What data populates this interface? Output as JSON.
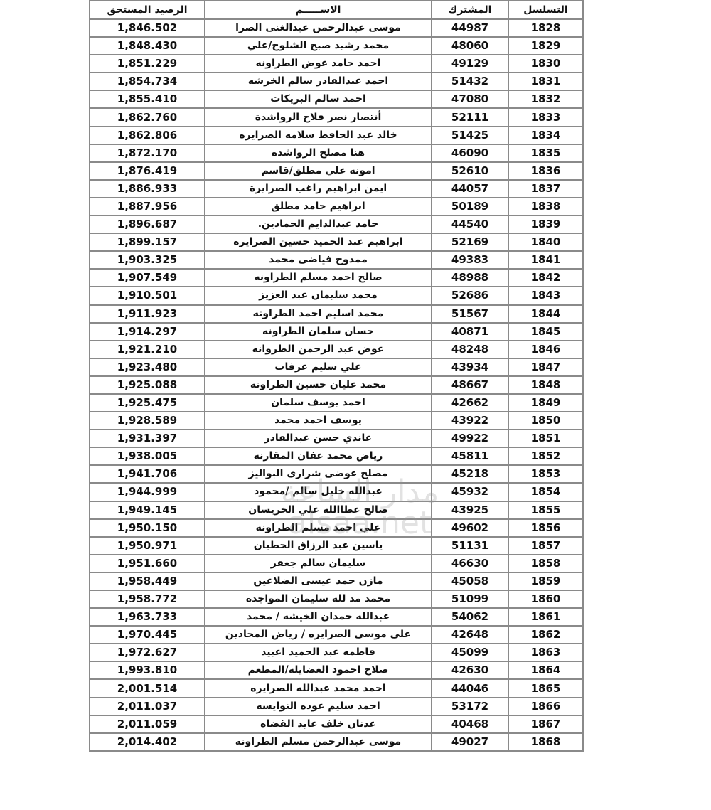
{
  "headers": {
    "balance": "الرصيد المستحق",
    "name": "الاســـــم",
    "subscriber": "المشترك",
    "serial": "التسلسل"
  },
  "rows": [
    {
      "serial": "1828",
      "subscriber": "44987",
      "name": "موسى عبدالرحمن عبدالغنى  الصرا",
      "balance": "1,846.502"
    },
    {
      "serial": "1829",
      "subscriber": "48060",
      "name": "محمد رشيد صبح الشلوح/علي",
      "balance": "1,848.430"
    },
    {
      "serial": "1830",
      "subscriber": "49129",
      "name": "احمد حامد عوض الطراونه",
      "balance": "1,851.229"
    },
    {
      "serial": "1831",
      "subscriber": "51432",
      "name": "احمد عبدالقادر سالم الخرشه",
      "balance": "1,854.734"
    },
    {
      "serial": "1832",
      "subscriber": "47080",
      "name": "احمد سالم البريكات",
      "balance": "1,855.410"
    },
    {
      "serial": "1833",
      "subscriber": "52111",
      "name": "أنتصار نصر فلاح الرواشدة",
      "balance": "1,862.760"
    },
    {
      "serial": "1834",
      "subscriber": "51425",
      "name": "خالد عبد الحافظ  سلامه الصرايره",
      "balance": "1,862.806"
    },
    {
      "serial": "1835",
      "subscriber": "46090",
      "name": "هنا مصلح الرواشدة",
      "balance": "1,872.170"
    },
    {
      "serial": "1836",
      "subscriber": "52610",
      "name": "امونه علي مطلق/قاسم",
      "balance": "1,876.419"
    },
    {
      "serial": "1837",
      "subscriber": "44057",
      "name": "ايمن ابراهيم راغب الصرايرة",
      "balance": "1,886.933"
    },
    {
      "serial": "1838",
      "subscriber": "50189",
      "name": "ابراهيم حامد مطلق",
      "balance": "1,887.956"
    },
    {
      "serial": "1839",
      "subscriber": "44540",
      "name": "حامد عبدالدايم الحمادين.",
      "balance": "1,896.687"
    },
    {
      "serial": "1840",
      "subscriber": "52169",
      "name": "ابراهيم عبد الحميد حسين الصرايره",
      "balance": "1,899.157"
    },
    {
      "serial": "1841",
      "subscriber": "49383",
      "name": "ممدوح فياضى محمد",
      "balance": "1,903.325"
    },
    {
      "serial": "1842",
      "subscriber": "48988",
      "name": "صالح احمد  مسلم الطراونه",
      "balance": "1,907.549"
    },
    {
      "serial": "1843",
      "subscriber": "52686",
      "name": "محمد سليمان عبد العزيز",
      "balance": "1,910.501"
    },
    {
      "serial": "1844",
      "subscriber": "51567",
      "name": "محمد اسليم احمد الطراونه",
      "balance": "1,911.923"
    },
    {
      "serial": "1845",
      "subscriber": "40871",
      "name": "حسان سلمان الطراونه",
      "balance": "1,914.297"
    },
    {
      "serial": "1846",
      "subscriber": "48248",
      "name": "عوض عبد الرحمن الطروانه",
      "balance": "1,921.210"
    },
    {
      "serial": "1847",
      "subscriber": "43934",
      "name": "علي سليم عرفات",
      "balance": "1,923.480"
    },
    {
      "serial": "1848",
      "subscriber": "48667",
      "name": "محمد عليان حسين الطراونه",
      "balance": "1,925.088"
    },
    {
      "serial": "1849",
      "subscriber": "42662",
      "name": "احمد يوسف سلمان",
      "balance": "1,925.475"
    },
    {
      "serial": "1850",
      "subscriber": "43922",
      "name": "يوسف احمد محمد",
      "balance": "1,928.589"
    },
    {
      "serial": "1851",
      "subscriber": "49922",
      "name": "غاندي حسن عبدالقادر",
      "balance": "1,931.397"
    },
    {
      "serial": "1852",
      "subscriber": "45811",
      "name": "رياض محمد عفان المقارنه",
      "balance": "1,938.005"
    },
    {
      "serial": "1853",
      "subscriber": "45218",
      "name": "مصلح عوضى شرارى البواليز",
      "balance": "1,941.706"
    },
    {
      "serial": "1854",
      "subscriber": "45932",
      "name": "عبدالله خليل سالم /محمود",
      "balance": "1,944.999"
    },
    {
      "serial": "1855",
      "subscriber": "43925",
      "name": "صالح عطاالله علي الخريسان",
      "balance": "1,949.145"
    },
    {
      "serial": "1856",
      "subscriber": "49602",
      "name": "علي احمد  مسلم الطراونه",
      "balance": "1,950.150"
    },
    {
      "serial": "1857",
      "subscriber": "51131",
      "name": "ياسين عبد الرزاق الحطيان",
      "balance": "1,950.971"
    },
    {
      "serial": "1858",
      "subscriber": "46630",
      "name": "سليمان سالم جعفر",
      "balance": "1,951.660"
    },
    {
      "serial": "1859",
      "subscriber": "45058",
      "name": "مازن حمد عيسى الضلاعين",
      "balance": "1,958.449"
    },
    {
      "serial": "1860",
      "subscriber": "51099",
      "name": "محمد مد لله  سليمان  المواجده",
      "balance": "1,958.772"
    },
    {
      "serial": "1861",
      "subscriber": "54062",
      "name": "عبدالله حمدان الخيشه / محمد",
      "balance": "1,963.733"
    },
    {
      "serial": "1862",
      "subscriber": "42648",
      "name": "على موسى الصرايره / رياض المحادين",
      "balance": "1,970.445"
    },
    {
      "serial": "1863",
      "subscriber": "45099",
      "name": "فاطمه عبد الحميد اعبيد",
      "balance": "1,972.627"
    },
    {
      "serial": "1864",
      "subscriber": "42630",
      "name": "صلاح احمود العضايله/المطعم",
      "balance": "1,993.810"
    },
    {
      "serial": "1865",
      "subscriber": "44046",
      "name": "احمد محمد عبدالله الصرايره",
      "balance": "2,001.514"
    },
    {
      "serial": "1866",
      "subscriber": "53172",
      "name": "احمد سليم عوده النوايسه",
      "balance": "2,011.037"
    },
    {
      "serial": "1867",
      "subscriber": "40468",
      "name": "عدنان خلف عايد القضاه",
      "balance": "2,011.059"
    },
    {
      "serial": "1868",
      "subscriber": "49027",
      "name": "موسى عبدالرحمن مسلم الطراونة",
      "balance": "2,014.402"
    }
  ],
  "watermark": {
    "line1": "مدار الساعة",
    "line2": "alsaa.net"
  }
}
